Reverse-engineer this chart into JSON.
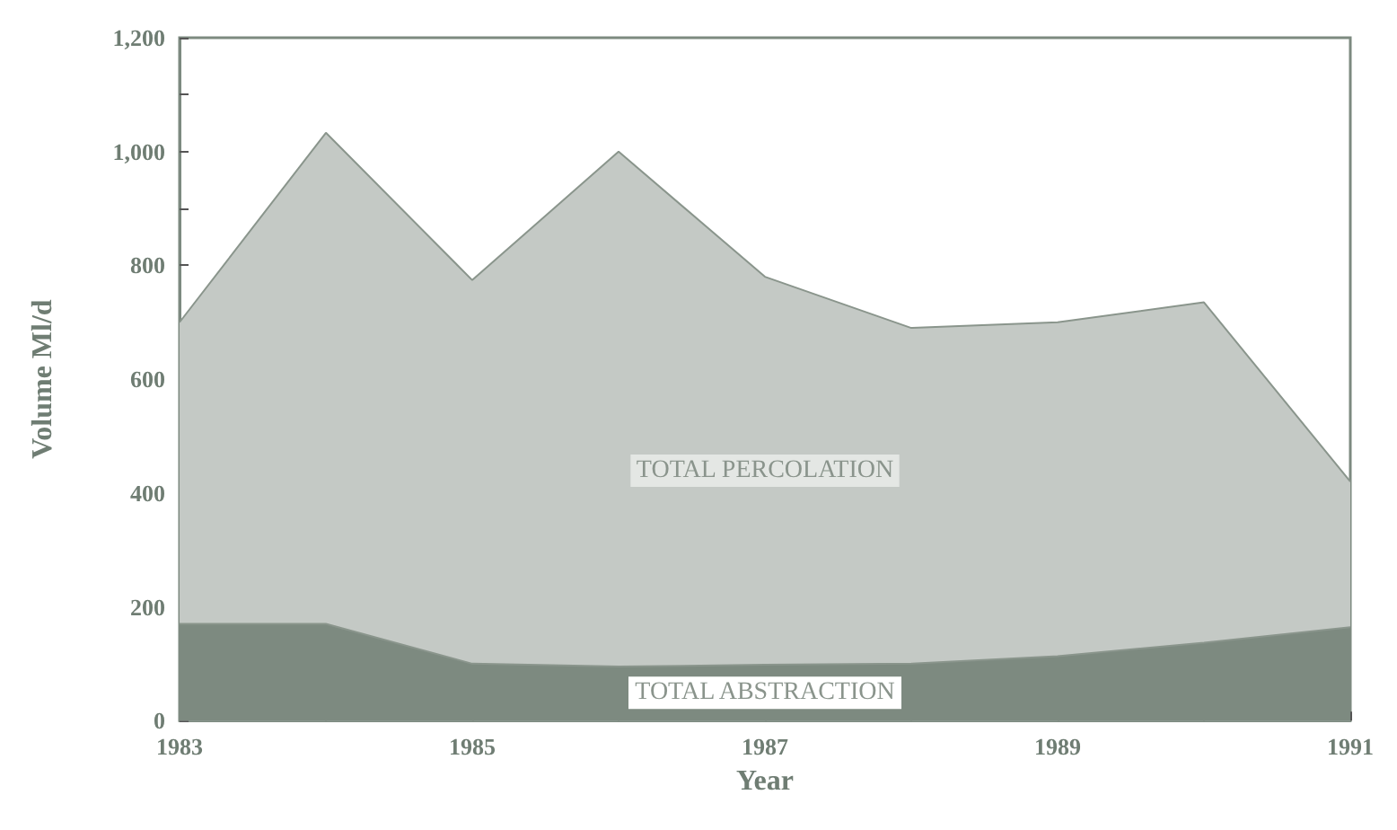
{
  "chart_data": {
    "type": "area",
    "stacked": true,
    "xlabel": "Year",
    "ylabel": "Volume Ml/d",
    "x": [
      1983,
      1984,
      1985,
      1986,
      1987,
      1988,
      1989,
      1990,
      1991
    ],
    "series": [
      {
        "name": "TOTAL ABSTRACTION",
        "color": "#7d8a80",
        "values": [
          170,
          170,
          100,
          95,
          98,
          100,
          113,
          137,
          164
        ]
      },
      {
        "name": "TOTAL PERCOLATION",
        "color": "#c4c9c5",
        "values": [
          530,
          863,
          674,
          905,
          682,
          590,
          587,
          598,
          256
        ]
      }
    ],
    "xlim": [
      1983,
      1991
    ],
    "xticks": [
      1983,
      {
        "value": 1984,
        "label": null
      },
      1985,
      {
        "value": 1986,
        "label": null
      },
      1987,
      {
        "value": 1988,
        "label": null
      },
      1989,
      {
        "value": 1990,
        "label": null
      },
      1991
    ],
    "ylim": [
      0,
      1200
    ],
    "yticks": [
      0,
      {
        "value": 100,
        "label": null
      },
      200,
      {
        "value": 300,
        "label": null
      },
      400,
      {
        "value": 500,
        "label": null
      },
      600,
      {
        "value": 700,
        "label": null
      },
      800,
      {
        "value": 900,
        "label": null
      },
      {
        "value": 1000,
        "label": "1,000"
      },
      {
        "value": 1100,
        "label": null
      },
      {
        "value": 1200,
        "label": "1,200"
      }
    ],
    "grid": false,
    "legend": false
  }
}
